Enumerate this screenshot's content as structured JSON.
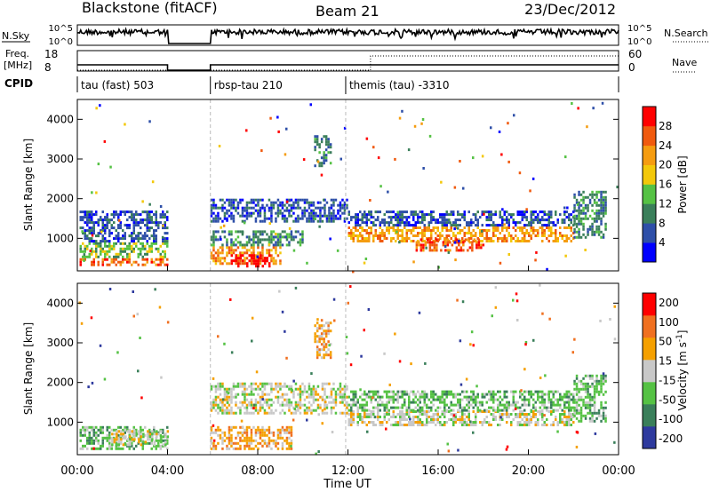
{
  "header": {
    "station": "Blackstone (fitACF)",
    "beam": "Beam 21",
    "date": "23/Dec/2012"
  },
  "noise_panel": {
    "left_label": "N.Sky",
    "right_label": "N.Search",
    "ticks": [
      "10^5",
      "10^0"
    ]
  },
  "freq_panel": {
    "left_label_1": "Freq.",
    "left_label_2": "[MHz]",
    "left_ticks": [
      "18",
      "8"
    ],
    "right_label": "Nave",
    "right_ticks": [
      "60",
      "0"
    ]
  },
  "cpid_panel": {
    "label": "CPID",
    "segments": [
      {
        "start_hour": 0.0,
        "text": "tau (fast) 503"
      },
      {
        "start_hour": 5.9,
        "text": "rbsp-tau 210"
      },
      {
        "start_hour": 11.9,
        "text": "themis (tau) -3310"
      }
    ]
  },
  "colors": {
    "power": [
      "#0000ff",
      "#2e4fa8",
      "#3a7f5a",
      "#55c244",
      "#f3c80a",
      "#f59c10",
      "#f05a0e",
      "#ff0000"
    ],
    "velocity": [
      "#2e3a9e",
      "#3a7f5a",
      "#55c244",
      "#c8c8c8",
      "#f5a000",
      "#f07020",
      "#ff0000"
    ]
  },
  "chart_data": [
    {
      "type": "heatmap",
      "title": "",
      "xlabel": "",
      "ylabel": "Slant Range [km]",
      "colorbar_label": "Power [dB]",
      "colorbar_ticks": [
        "4",
        "8",
        "12",
        "16",
        "20",
        "24",
        "28"
      ],
      "xlim": [
        0,
        24
      ],
      "ylim": [
        180,
        4500
      ],
      "yticks": [
        "1000",
        "2000",
        "3000",
        "4000"
      ],
      "data_gaps_hours": [
        [
          4.0,
          5.9
        ]
      ],
      "regions": [
        {
          "x": [
            0.1,
            4.0
          ],
          "y": [
            300,
            500
          ],
          "level": 6
        },
        {
          "x": [
            0.1,
            4.0
          ],
          "y": [
            500,
            900
          ],
          "level": 3
        },
        {
          "x": [
            0.1,
            4.0
          ],
          "y": [
            900,
            1700
          ],
          "level": 1
        },
        {
          "x": [
            5.9,
            9.0
          ],
          "y": [
            350,
            800
          ],
          "level": 5
        },
        {
          "x": [
            6.8,
            8.5
          ],
          "y": [
            300,
            600
          ],
          "level": 7
        },
        {
          "x": [
            5.9,
            10.0
          ],
          "y": [
            800,
            1200
          ],
          "level": 2
        },
        {
          "x": [
            5.9,
            12.0
          ],
          "y": [
            1400,
            2000
          ],
          "level": 1
        },
        {
          "x": [
            10.5,
            11.2
          ],
          "y": [
            2800,
            3600
          ],
          "level": 2
        },
        {
          "x": [
            12.0,
            22.0
          ],
          "y": [
            900,
            1300
          ],
          "level": 5
        },
        {
          "x": [
            15.0,
            18.0
          ],
          "y": [
            700,
            1000
          ],
          "level": 6
        },
        {
          "x": [
            12.0,
            22.0
          ],
          "y": [
            1300,
            1700
          ],
          "level": 1
        },
        {
          "x": [
            22.0,
            23.4
          ],
          "y": [
            1000,
            2200
          ],
          "level": 2
        }
      ]
    },
    {
      "type": "heatmap",
      "title": "",
      "xlabel": "Time UT",
      "ylabel": "Slant Range [km]",
      "colorbar_label": "Velocity [m s^-1]",
      "colorbar_ticks": [
        "200",
        "100",
        "50",
        "15",
        "-15",
        "-50",
        "-100",
        "-200"
      ],
      "xlim": [
        0,
        24
      ],
      "ylim": [
        180,
        4500
      ],
      "xticks": [
        "00:00",
        "04:00",
        "08:00",
        "12:00",
        "16:00",
        "20:00",
        "00:00"
      ],
      "yticks": [
        "1000",
        "2000",
        "3000",
        "4000"
      ],
      "data_gaps_hours": [
        [
          4.0,
          5.9
        ]
      ],
      "regions": [
        {
          "x": [
            0.1,
            4.0
          ],
          "y": [
            300,
            900
          ],
          "level": 2
        },
        {
          "x": [
            1.5,
            4.0
          ],
          "y": [
            450,
            800
          ],
          "level": 3
        },
        {
          "x": [
            5.9,
            9.5
          ],
          "y": [
            350,
            900
          ],
          "level": 4
        },
        {
          "x": [
            5.9,
            12.0
          ],
          "y": [
            1200,
            2000
          ],
          "level": 3
        },
        {
          "x": [
            10.5,
            11.2
          ],
          "y": [
            2600,
            3600
          ],
          "level": 4
        },
        {
          "x": [
            12.0,
            22.0
          ],
          "y": [
            900,
            1300
          ],
          "level": 3
        },
        {
          "x": [
            12.0,
            22.0
          ],
          "y": [
            1300,
            1800
          ],
          "level": 2
        },
        {
          "x": [
            22.0,
            23.4
          ],
          "y": [
            1000,
            2200
          ],
          "level": 2
        }
      ]
    }
  ]
}
